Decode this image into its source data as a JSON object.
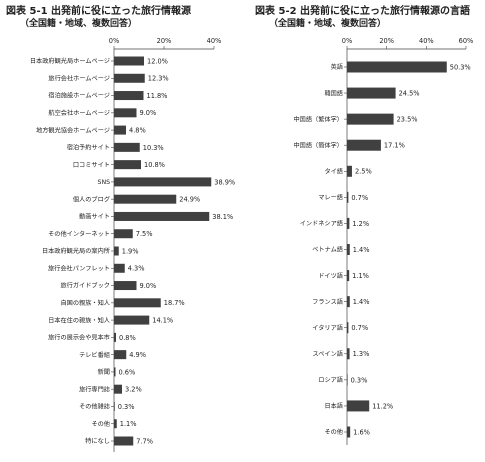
{
  "chart_data": [
    {
      "type": "bar",
      "title": "図表 5-1 出発前に役に立った旅行情報源",
      "subtitle": "（全国籍・地域、複数回答）",
      "xlim": [
        0,
        40
      ],
      "ticks": [
        "0%",
        "20%",
        "40%"
      ],
      "tick_values": [
        0,
        20,
        40
      ],
      "bar_color": "#404040",
      "categories": [
        "日本政府観光局ホームページ",
        "旅行会社ホームページ",
        "宿泊施設ホームページ",
        "航空会社ホームページ",
        "地方観光協会ホームページ",
        "宿泊予約サイト",
        "口コミサイト",
        "SNS",
        "個人のブログ",
        "動画サイト",
        "その他インターネット",
        "日本政府観光局の案内所",
        "旅行会社パンフレット",
        "旅行ガイドブック",
        "自国の親族・知人",
        "日本在住の親族・知人",
        "旅行の展示会や見本市",
        "テレビ番組",
        "新聞",
        "旅行専門誌",
        "その他雑誌",
        "その他",
        "特になし"
      ],
      "values": [
        12.0,
        12.3,
        11.8,
        9.0,
        4.8,
        10.3,
        10.8,
        38.9,
        24.9,
        38.1,
        7.5,
        1.9,
        4.3,
        9.0,
        18.7,
        14.1,
        0.8,
        4.9,
        0.6,
        3.2,
        0.3,
        1.1,
        7.7
      ],
      "labels": [
        "12.0%",
        "12.3%",
        "11.8%",
        "9.0%",
        "4.8%",
        "10.3%",
        "10.8%",
        "38.9%",
        "24.9%",
        "38.1%",
        "7.5%",
        "1.9%",
        "4.3%",
        "9.0%",
        "18.7%",
        "14.1%",
        "0.8%",
        "4.9%",
        "0.6%",
        "3.2%",
        "0.3%",
        "1.1%",
        "7.7%"
      ]
    },
    {
      "type": "bar",
      "title": "図表 5-2 出発前に役に立った旅行情報源の言語",
      "subtitle": "（全国籍・地域、複数回答）",
      "xlim": [
        0,
        60
      ],
      "ticks": [
        "0%",
        "20%",
        "40%",
        "60%"
      ],
      "tick_values": [
        0,
        20,
        40,
        60
      ],
      "bar_color": "#404040",
      "categories": [
        "英語",
        "韓国語",
        "中国語（繁体字）",
        "中国語（簡体字）",
        "タイ語",
        "マレー語",
        "インドネシア語",
        "ベトナム語",
        "ドイツ語",
        "フランス語",
        "イタリア語",
        "スペイン語",
        "ロシア語",
        "日本語",
        "その他"
      ],
      "values": [
        50.3,
        24.5,
        23.5,
        17.1,
        2.5,
        0.7,
        1.2,
        1.4,
        1.1,
        1.4,
        0.7,
        1.3,
        0.3,
        11.2,
        1.6
      ],
      "labels": [
        "50.3%",
        "24.5%",
        "23.5%",
        "17.1%",
        "2.5%",
        "0.7%",
        "1.2%",
        "1.4%",
        "1.1%",
        "1.4%",
        "0.7%",
        "1.3%",
        "0.3%",
        "11.2%",
        "1.6%"
      ]
    }
  ]
}
